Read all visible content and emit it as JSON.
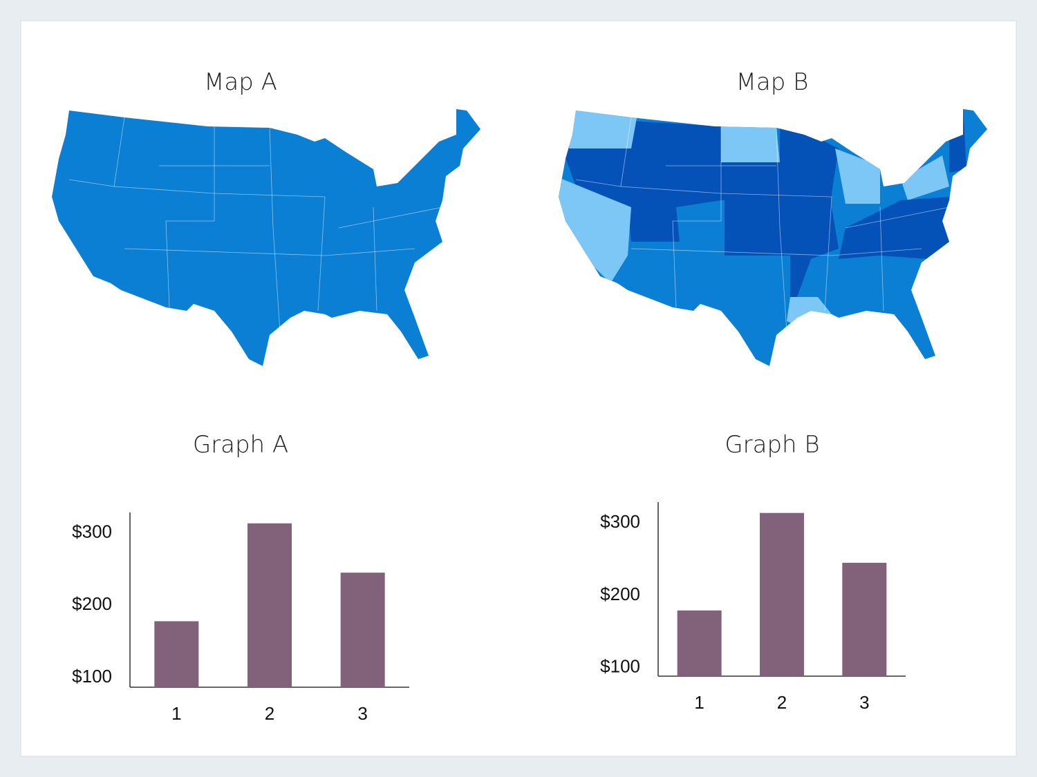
{
  "maps": [
    {
      "title": "Map A"
    },
    {
      "title": "Map B"
    }
  ],
  "chart_data": [
    {
      "type": "bar",
      "title": "Graph A",
      "categories": [
        "1",
        "2",
        "3"
      ],
      "values": [
        178,
        313,
        245
      ],
      "color": "#82627a",
      "ylim": [
        87,
        328
      ],
      "yticks": [
        {
          "value": 100,
          "label": "$100"
        },
        {
          "value": 200,
          "label": "$200"
        },
        {
          "value": 300,
          "label": "$300"
        }
      ],
      "grid": false
    },
    {
      "type": "bar",
      "title": "Graph B",
      "categories": [
        "1",
        "2",
        "3"
      ],
      "values": [
        179,
        314,
        245
      ],
      "color": "#82627a",
      "ylim": [
        88,
        329
      ],
      "yticks": [
        {
          "value": 100,
          "label": "$100"
        },
        {
          "value": 200,
          "label": "$200"
        },
        {
          "value": 300,
          "label": "$300"
        }
      ],
      "grid": false
    }
  ]
}
